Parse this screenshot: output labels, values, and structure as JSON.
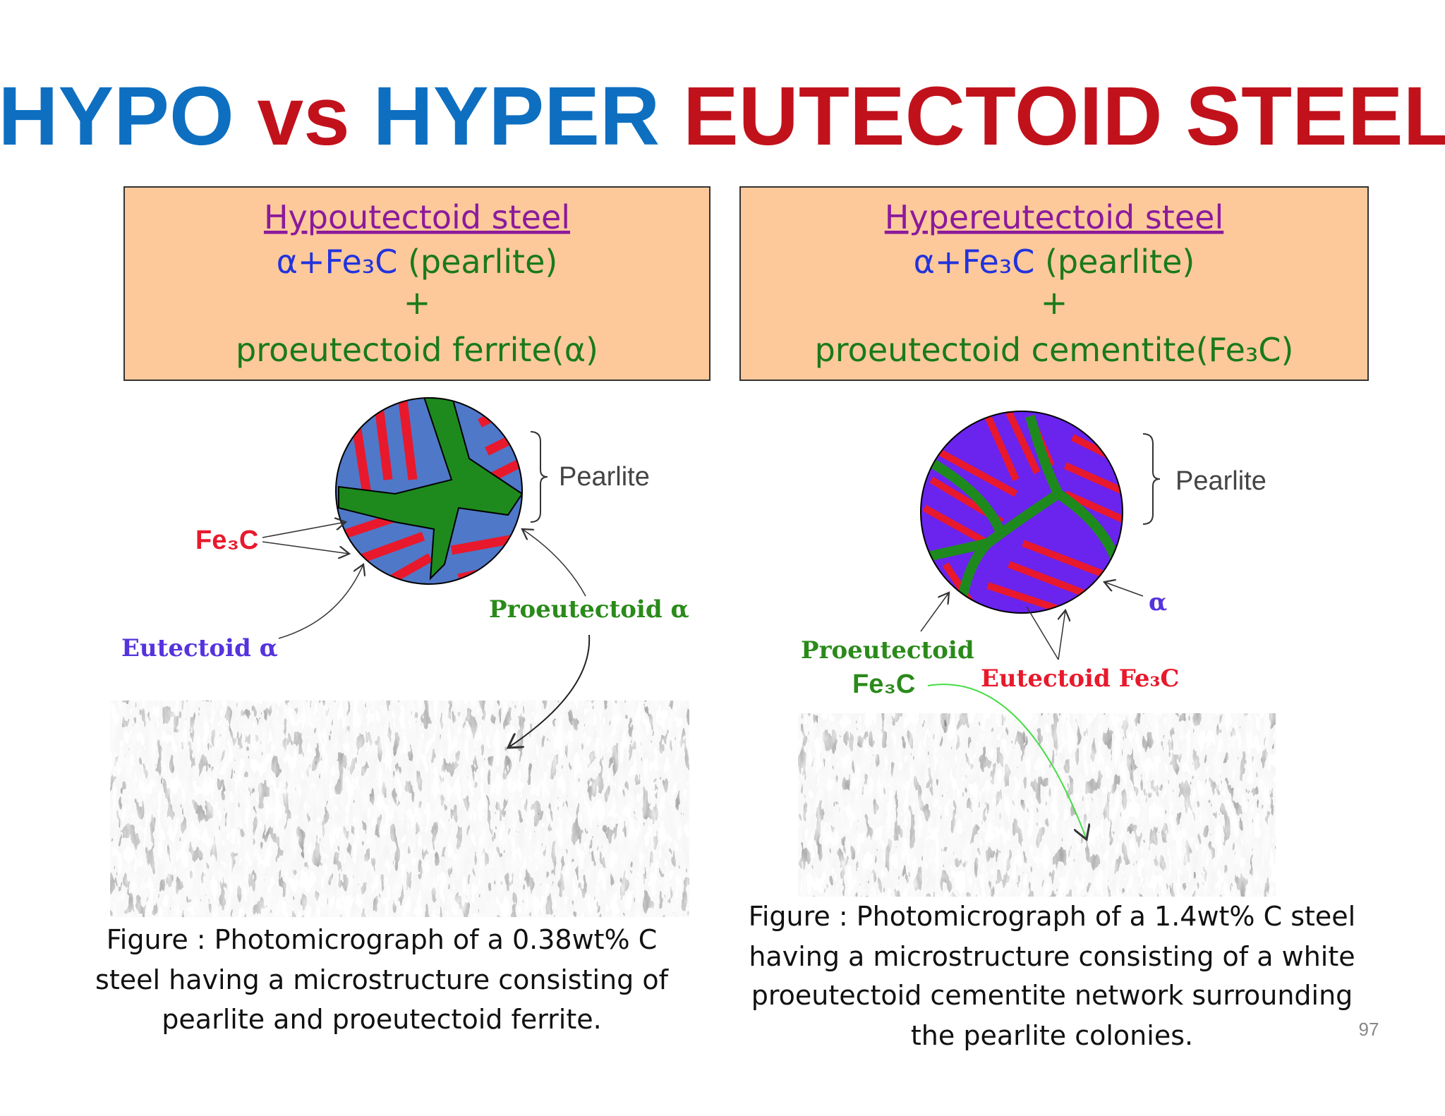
{
  "title": {
    "parts": [
      "HYPO",
      "vs",
      "HYPER",
      "EUTECTOID STEEL"
    ]
  },
  "left": {
    "heading": "Hypoutectoid steel",
    "line1": "α+Fe₃C",
    "line1_note": "(pearlite)",
    "plus": "+",
    "line3": "proeutectoid ferrite(α)",
    "labels": {
      "pearlite": "Pearlite",
      "fe3c": "Fe₃C",
      "proeutectoid": "Proeutectoid α",
      "eutectoid": "Eutectoid α"
    },
    "caption": [
      "Figure : Photomicrograph of a 0.38wt% C",
      "steel having a microstructure consisting of",
      "pearlite and proeutectoid ferrite."
    ]
  },
  "right": {
    "heading": "Hypereutectoid steel",
    "line1": "α+Fe₃C",
    "line1_note": "(pearlite)",
    "plus": "+",
    "line3": "proeutectoid cementite(Fe₃C)",
    "labels": {
      "pearlite": "Pearlite",
      "alpha": "α",
      "proeutectoid": "Proeutectoid",
      "proeutectoid_fe3c": "Fe₃C",
      "eutectoid": "Eutectoid Fe₃C"
    },
    "caption": [
      "Figure : Photomicrograph of a 1.4wt% C steel",
      "having a microstructure consisting of a white",
      "proeutectoid cementite network surrounding",
      "the pearlite colonies."
    ]
  },
  "page_number": "97"
}
